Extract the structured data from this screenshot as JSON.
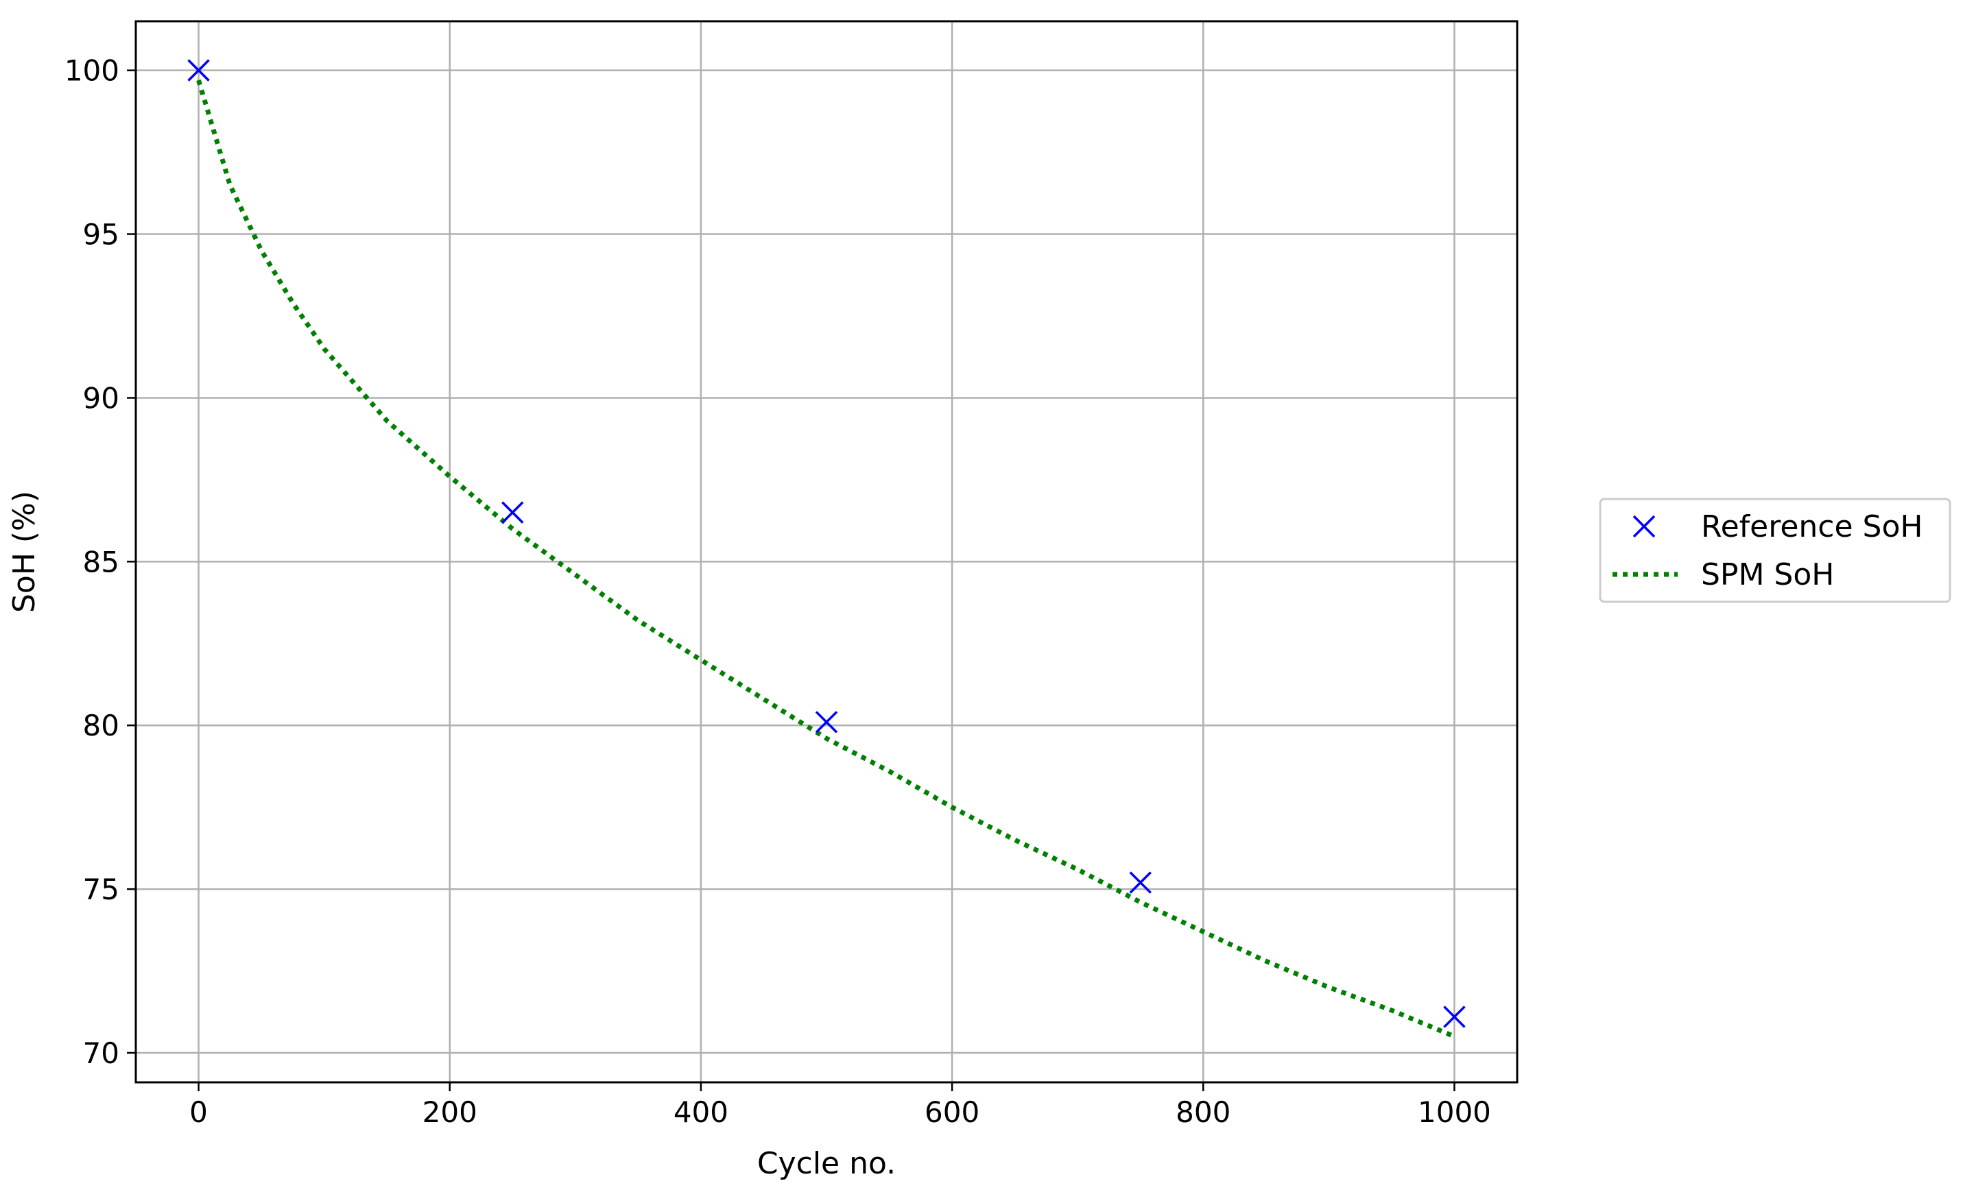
{
  "chart_data": {
    "type": "line",
    "title": "",
    "xlabel": "Cycle no.",
    "ylabel": "SoH (%)",
    "xlim": [
      -50,
      1050
    ],
    "ylim": [
      69.1,
      101.5
    ],
    "xticks": [
      0,
      200,
      400,
      600,
      800,
      1000
    ],
    "yticks": [
      70,
      75,
      80,
      85,
      90,
      95,
      100
    ],
    "grid": true,
    "legend_position": "outside-right",
    "series": [
      {
        "name": "Reference SoH",
        "kind": "scatter",
        "marker": "x",
        "color": "#0000ff",
        "x": [
          0,
          250,
          500,
          750,
          1000
        ],
        "y": [
          100.0,
          86.5,
          80.1,
          75.2,
          71.1
        ]
      },
      {
        "name": "SPM SoH",
        "kind": "line",
        "linestyle": "dotted",
        "color": "#008000",
        "x": [
          0,
          25,
          50,
          75,
          100,
          150,
          200,
          250,
          300,
          350,
          400,
          450,
          500,
          550,
          600,
          650,
          700,
          750,
          800,
          850,
          900,
          950,
          1000
        ],
        "y": [
          99.7,
          96.5,
          94.5,
          92.9,
          91.5,
          89.3,
          87.6,
          86.0,
          84.6,
          83.2,
          82.0,
          80.8,
          79.6,
          78.6,
          77.5,
          76.5,
          75.6,
          74.6,
          73.7,
          72.8,
          72.0,
          71.3,
          70.5
        ]
      }
    ]
  }
}
